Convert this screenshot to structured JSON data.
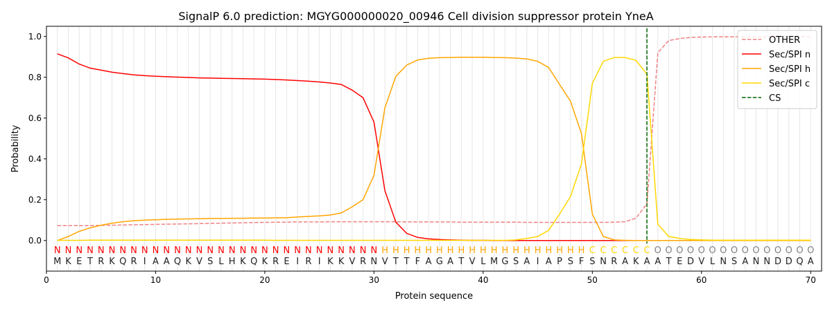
{
  "chart_data": {
    "type": "line",
    "title": "SignalP 6.0 prediction: MGYG000000020_00946 Cell division suppressor protein YneA",
    "xlabel": "Protein sequence",
    "ylabel": "Probability",
    "xlim": [
      0,
      71
    ],
    "ylim": [
      -0.15,
      1.05
    ],
    "xticks": [
      0,
      10,
      20,
      30,
      40,
      50,
      60,
      70
    ],
    "xtick_labels": [
      "0",
      "10",
      "20",
      "30",
      "40",
      "50",
      "60",
      "70"
    ],
    "yticks": [
      0.0,
      0.2,
      0.4,
      0.6,
      0.8,
      1.0
    ],
    "ytick_labels": [
      "0.0",
      "0.2",
      "0.4",
      "0.6",
      "0.8",
      "1.0"
    ],
    "grid": "vertical lines at each residue",
    "legend_position": "top-right",
    "sequence": [
      "M",
      "K",
      "E",
      "T",
      "R",
      "K",
      "Q",
      "R",
      "I",
      "A",
      "A",
      "Q",
      "K",
      "V",
      "S",
      "L",
      "H",
      "K",
      "Q",
      "K",
      "R",
      "E",
      "I",
      "R",
      "I",
      "K",
      "K",
      "V",
      "R",
      "N",
      "V",
      "T",
      "T",
      "F",
      "A",
      "G",
      "A",
      "T",
      "V",
      "L",
      "M",
      "G",
      "S",
      "A",
      "I",
      "A",
      "P",
      "S",
      "F",
      "S",
      "N",
      "R",
      "A",
      "K",
      "A",
      "A",
      "T",
      "E",
      "D",
      "V",
      "L",
      "N",
      "S",
      "A",
      "N",
      "N",
      "D",
      "D",
      "Q",
      "A"
    ],
    "labels": [
      "N",
      "N",
      "N",
      "N",
      "N",
      "N",
      "N",
      "N",
      "N",
      "N",
      "N",
      "N",
      "N",
      "N",
      "N",
      "N",
      "N",
      "N",
      "N",
      "N",
      "N",
      "N",
      "N",
      "N",
      "N",
      "N",
      "N",
      "N",
      "N",
      "N",
      "H",
      "H",
      "H",
      "H",
      "H",
      "H",
      "H",
      "H",
      "H",
      "H",
      "H",
      "H",
      "H",
      "H",
      "H",
      "H",
      "H",
      "H",
      "H",
      "C",
      "C",
      "C",
      "C",
      "C",
      "C",
      "O",
      "O",
      "O",
      "O",
      "O",
      "O",
      "O",
      "O",
      "O",
      "O",
      "O",
      "O",
      "O",
      "O",
      "O"
    ],
    "label_colors": {
      "N": "#ff0000",
      "H": "#ffa500",
      "C": "#ffd700",
      "O": "#808080"
    },
    "cs_position": 55,
    "series": [
      {
        "name": "OTHER",
        "color": "#f08080",
        "dash": true,
        "values": [
          0.073,
          0.073,
          0.073,
          0.073,
          0.074,
          0.075,
          0.076,
          0.077,
          0.078,
          0.079,
          0.08,
          0.081,
          0.082,
          0.083,
          0.084,
          0.085,
          0.086,
          0.087,
          0.088,
          0.089,
          0.09,
          0.09,
          0.091,
          0.091,
          0.091,
          0.092,
          0.092,
          0.092,
          0.092,
          0.092,
          0.092,
          0.092,
          0.091,
          0.091,
          0.091,
          0.091,
          0.091,
          0.09,
          0.09,
          0.09,
          0.09,
          0.09,
          0.09,
          0.089,
          0.089,
          0.089,
          0.089,
          0.089,
          0.089,
          0.089,
          0.089,
          0.09,
          0.092,
          0.11,
          0.18,
          0.92,
          0.98,
          0.99,
          0.995,
          0.997,
          0.998,
          0.998,
          0.998,
          0.998,
          0.998,
          0.998,
          0.998,
          0.998,
          0.998,
          0.998
        ]
      },
      {
        "name": "Sec/SPI n",
        "color": "#ff0000",
        "dash": false,
        "values": [
          0.915,
          0.895,
          0.865,
          0.845,
          0.835,
          0.825,
          0.818,
          0.812,
          0.808,
          0.805,
          0.803,
          0.801,
          0.799,
          0.797,
          0.796,
          0.795,
          0.794,
          0.793,
          0.792,
          0.791,
          0.789,
          0.787,
          0.784,
          0.781,
          0.777,
          0.772,
          0.765,
          0.737,
          0.7,
          0.58,
          0.245,
          0.09,
          0.035,
          0.015,
          0.008,
          0.005,
          0.003,
          0.002,
          0.001,
          0.001,
          0,
          0,
          0,
          0,
          0,
          0,
          0,
          0,
          0,
          0,
          0,
          0,
          0,
          0,
          0,
          0,
          0,
          0,
          0,
          0,
          0,
          0,
          0,
          0,
          0,
          0,
          0,
          0,
          0,
          0
        ]
      },
      {
        "name": "Sec/SPI h",
        "color": "#ffa500",
        "dash": false,
        "values": [
          0.0,
          0.02,
          0.045,
          0.062,
          0.075,
          0.085,
          0.092,
          0.097,
          0.1,
          0.102,
          0.104,
          0.105,
          0.106,
          0.107,
          0.108,
          0.108,
          0.109,
          0.109,
          0.11,
          0.11,
          0.111,
          0.112,
          0.115,
          0.118,
          0.121,
          0.125,
          0.135,
          0.165,
          0.2,
          0.32,
          0.65,
          0.805,
          0.86,
          0.885,
          0.893,
          0.896,
          0.897,
          0.898,
          0.898,
          0.898,
          0.897,
          0.896,
          0.894,
          0.89,
          0.878,
          0.848,
          0.765,
          0.683,
          0.525,
          0.13,
          0.02,
          0.003,
          0.001,
          0,
          0,
          0,
          0,
          0,
          0,
          0,
          0,
          0,
          0,
          0,
          0,
          0,
          0,
          0,
          0,
          0
        ]
      },
      {
        "name": "Sec/SPI c",
        "color": "#ffd700",
        "dash": false,
        "values": [
          0.001,
          0.001,
          0.001,
          0.002,
          0.002,
          0.002,
          0.002,
          0.002,
          0.002,
          0.002,
          0.002,
          0.002,
          0.002,
          0.002,
          0.002,
          0.002,
          0.002,
          0.002,
          0.002,
          0.002,
          0.001,
          0.001,
          0.001,
          0.001,
          0.001,
          0.001,
          0.001,
          0.001,
          0.001,
          0.001,
          0.001,
          0.001,
          0.001,
          0.001,
          0.001,
          0.001,
          0.001,
          0.001,
          0.001,
          0.001,
          0.001,
          0.001,
          0.003,
          0.01,
          0.02,
          0.05,
          0.13,
          0.215,
          0.375,
          0.77,
          0.878,
          0.897,
          0.897,
          0.883,
          0.815,
          0.08,
          0.02,
          0.01,
          0.005,
          0.003,
          0.002,
          0.002,
          0.002,
          0.002,
          0.002,
          0.002,
          0.002,
          0.002,
          0.002,
          0.002
        ]
      }
    ],
    "legend": [
      "OTHER",
      "Sec/SPI n",
      "Sec/SPI h",
      "Sec/SPI c",
      "CS"
    ],
    "cs_color": "#006400"
  }
}
